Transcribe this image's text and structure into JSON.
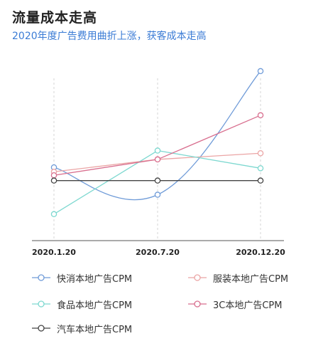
{
  "header": {
    "title": "流量成本走高",
    "subtitle": "2020年度广告费用曲折上涨，获客成本走高"
  },
  "colors": {
    "axis": "#555555",
    "grid": "#d6d6d6",
    "subtitle": "#3a7bd5"
  },
  "chart_data": {
    "type": "line",
    "title": "流量成本走高",
    "subtitle": "2020年度广告费用曲折上涨，获客成本走高",
    "categories": [
      "2020.1.20",
      "2020.7.20",
      "2020.12.20"
    ],
    "ylim": [
      0,
      100
    ],
    "grid": "vertical dashed lines at each category",
    "legend_position": "bottom",
    "series": [
      {
        "name": "快消本地广告CPM",
        "values": [
          41.5,
          26,
          96
        ],
        "color": "#6f9bd8",
        "smooth": true
      },
      {
        "name": "服装本地广告CPM",
        "values": [
          39,
          46,
          49.5
        ],
        "color": "#eba5a5",
        "smooth": false
      },
      {
        "name": "食品本地广告CPM",
        "values": [
          15,
          51,
          41
        ],
        "color": "#7dd8d0",
        "smooth": false
      },
      {
        "name": "3C本地广告CPM",
        "values": [
          37,
          46,
          71
        ],
        "color": "#d86e8e",
        "smooth": false
      },
      {
        "name": "汽车本地广告CPM",
        "values": [
          34,
          34,
          34
        ],
        "color": "#444444",
        "smooth": false
      }
    ]
  }
}
